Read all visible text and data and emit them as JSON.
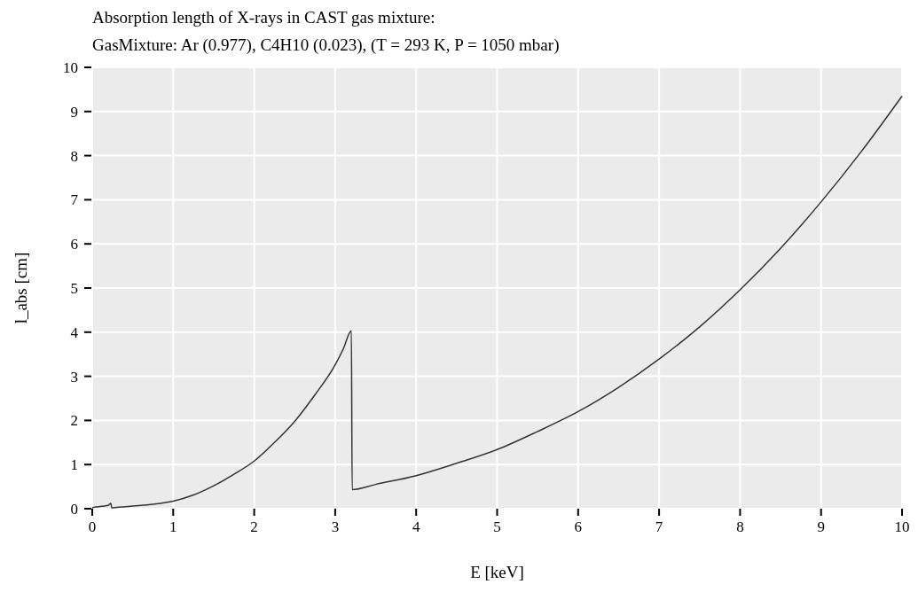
{
  "chart_data": {
    "type": "line",
    "title": "Absorption length of X-rays in CAST gas mixture:",
    "subtitle": "GasMixture: Ar (0.977), C4H10 (0.023), (T = 293 K, P = 1050 mbar)",
    "xlabel": "E [keV]",
    "ylabel": "l_abs [cm]",
    "series": [
      {
        "color": "#333333",
        "x": [
          0,
          0.05,
          0.1,
          0.15,
          0.2,
          0.23,
          0.24,
          0.3,
          0.5,
          0.75,
          1.0,
          1.25,
          1.5,
          1.75,
          2.0,
          2.25,
          2.5,
          2.75,
          3.0,
          3.1,
          3.2,
          3.21,
          3.5,
          4,
          4.5,
          5,
          5.5,
          6,
          6.5,
          7,
          7.5,
          8,
          8.5,
          9,
          9.5,
          10
        ],
        "values": [
          0.02,
          0.04,
          0.05,
          0.06,
          0.08,
          0.12,
          0.02,
          0.03,
          0.06,
          0.1,
          0.17,
          0.31,
          0.52,
          0.78,
          1.08,
          1.5,
          1.98,
          2.58,
          3.26,
          3.62,
          4.03,
          0.43,
          0.55,
          0.75,
          1.03,
          1.34,
          1.75,
          2.2,
          2.75,
          3.39,
          4.12,
          4.96,
          5.9,
          6.95,
          8.1,
          9.35
        ]
      }
    ],
    "xlim": [
      0,
      10
    ],
    "ylim": [
      0,
      10
    ],
    "xticks": [
      0,
      1,
      2,
      3,
      4,
      5,
      6,
      7,
      8,
      9,
      10
    ],
    "yticks": [
      0,
      1,
      2,
      3,
      4,
      5,
      6,
      7,
      8,
      9,
      10
    ],
    "grid": true,
    "marker": "none",
    "line_style": "solid"
  }
}
